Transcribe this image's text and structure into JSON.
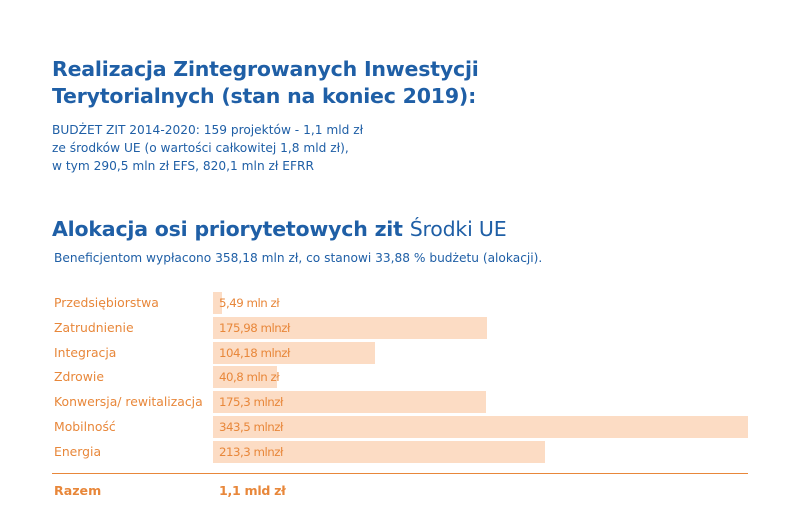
{
  "title": {
    "line1": "Realizacja Zintegrowanych Inwestycji",
    "line2": "Terytorialnych (stan na koniec 2019):"
  },
  "budget": {
    "line1": "BUDŻET ZIT 2014-2020: 159 projektów -  1,1 mld zł",
    "line2": "ze środków UE (o wartości całkowitej 1,8 mld zł),",
    "line3": "w tym  290,5 mln zł EFS, 820,1 mln zł EFRR"
  },
  "heading": {
    "bold": "Alokacja osi priorytetowych zit",
    "light": "Środki UE"
  },
  "subtext": "Beneficjentom wypłacono 358,18 mln zł, co stanowi 33,88 % budżetu (alokacji).",
  "colors": {
    "title": "#1f5fa6",
    "accent": "#e8873a",
    "bar": "#fcdcc4"
  },
  "chart_data": {
    "type": "bar",
    "orientation": "horizontal",
    "unit": "mln zł",
    "categories": [
      "Przedsiębiorstwa",
      "Zatrudnienie",
      "Integracja",
      "Zdrowie",
      "Konwersja/ rewitalizacja",
      "Mobilność",
      "Energia"
    ],
    "values": [
      5.49,
      175.98,
      104.18,
      40.8,
      175.3,
      343.5,
      213.3
    ],
    "data_labels": [
      "5,49 mln zł",
      "175,98 mlnzł",
      "104,18 mlnzł",
      "40,8 mln zł",
      "175,3 mlnzł",
      "343,5 mlnzł",
      "213,3 mlnzł"
    ],
    "xlim": [
      0,
      343.5
    ],
    "grid": false,
    "legend": "none",
    "total": {
      "label": "Razem",
      "value": "1,1 mld zł"
    }
  }
}
